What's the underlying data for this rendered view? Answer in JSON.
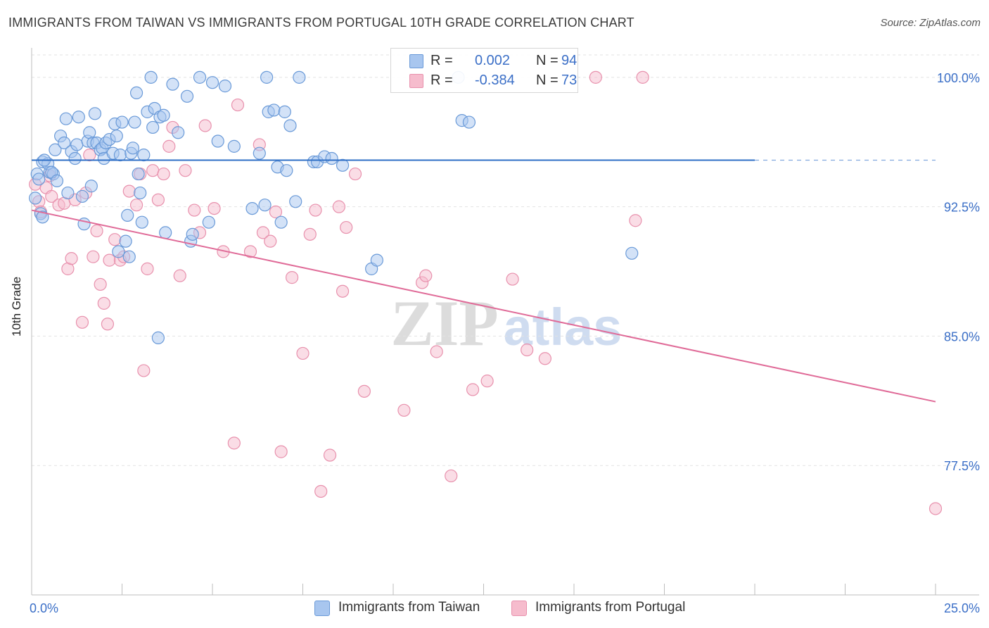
{
  "title": "IMMIGRANTS FROM TAIWAN VS IMMIGRANTS FROM PORTUGAL 10TH GRADE CORRELATION CHART",
  "source": "Source: ZipAtlas.com",
  "watermark": {
    "zip": "ZIP",
    "atlas": "atlas"
  },
  "legend": {
    "taiwan": {
      "r_label": "R =",
      "r_value": "0.002",
      "n_label": "N =",
      "n_value": "94"
    },
    "portugal": {
      "r_label": "R =",
      "r_value": "-0.384",
      "n_label": "N =",
      "n_value": "73"
    }
  },
  "bottom_legend": {
    "taiwan": "Immigrants from Taiwan",
    "portugal": "Immigrants from Portugal"
  },
  "colors": {
    "taiwan_fill": "#a8c6ef",
    "taiwan_stroke": "#6a9ad8",
    "taiwan_line": "#2f6fc6",
    "portugal_fill": "#f6bccd",
    "portugal_stroke": "#e891ad",
    "portugal_line": "#e06b98",
    "tick_label": "#3b6fc7",
    "grid": "#e2e2e2"
  },
  "chart_data": {
    "type": "scatter",
    "title": "IMMIGRANTS FROM TAIWAN VS IMMIGRANTS FROM PORTUGAL 10TH GRADE CORRELATION CHART",
    "xlabel": "",
    "ylabel": "10th Grade",
    "xlim": [
      0,
      25
    ],
    "ylim": [
      70.0,
      101.3
    ],
    "x_tick_labels": [
      {
        "value": 0,
        "label": "0.0%"
      },
      {
        "value": 25,
        "label": "25.0%"
      }
    ],
    "y_ticks": [
      {
        "value": 100.0,
        "label": "100.0%"
      },
      {
        "value": 92.5,
        "label": "92.5%"
      },
      {
        "value": 85.0,
        "label": "85.0%"
      },
      {
        "value": 77.5,
        "label": "77.5%"
      }
    ],
    "grid": "horizontal dashed",
    "legend_position": "top-center",
    "series": [
      {
        "name": "Immigrants from Taiwan",
        "R": 0.002,
        "N": 94,
        "trend": {
          "x": [
            0,
            20
          ],
          "y": [
            95.2,
            95.2
          ]
        },
        "trend_extension": {
          "x": [
            20,
            25
          ],
          "y": [
            95.2,
            95.2
          ]
        },
        "points": [
          [
            0.15,
            94.4
          ],
          [
            0.2,
            94.1
          ],
          [
            0.3,
            95.1
          ],
          [
            0.25,
            92.1
          ],
          [
            0.3,
            91.9
          ],
          [
            0.5,
            94.5
          ],
          [
            0.6,
            94.4
          ],
          [
            0.45,
            95.0
          ],
          [
            0.55,
            94.5
          ],
          [
            0.7,
            94.0
          ],
          [
            0.65,
            95.8
          ],
          [
            0.8,
            96.6
          ],
          [
            0.9,
            96.2
          ],
          [
            0.95,
            97.6
          ],
          [
            1.0,
            93.3
          ],
          [
            1.1,
            95.7
          ],
          [
            1.2,
            95.3
          ],
          [
            1.3,
            97.7
          ],
          [
            1.25,
            96.1
          ],
          [
            1.4,
            93.1
          ],
          [
            1.45,
            91.5
          ],
          [
            1.55,
            96.3
          ],
          [
            1.6,
            96.8
          ],
          [
            1.65,
            93.7
          ],
          [
            1.7,
            96.2
          ],
          [
            1.75,
            97.9
          ],
          [
            1.8,
            96.2
          ],
          [
            1.9,
            95.8
          ],
          [
            1.95,
            95.9
          ],
          [
            2.0,
            95.3
          ],
          [
            2.05,
            96.2
          ],
          [
            2.15,
            96.4
          ],
          [
            2.25,
            95.6
          ],
          [
            2.3,
            97.3
          ],
          [
            2.35,
            96.6
          ],
          [
            2.4,
            89.9
          ],
          [
            2.45,
            95.5
          ],
          [
            2.5,
            97.4
          ],
          [
            2.6,
            90.5
          ],
          [
            2.65,
            92.0
          ],
          [
            2.7,
            89.6
          ],
          [
            2.75,
            95.6
          ],
          [
            2.8,
            95.9
          ],
          [
            2.85,
            97.4
          ],
          [
            2.9,
            99.1
          ],
          [
            2.95,
            94.4
          ],
          [
            3.0,
            93.3
          ],
          [
            3.05,
            91.6
          ],
          [
            3.1,
            95.5
          ],
          [
            3.2,
            98.0
          ],
          [
            3.3,
            100.0
          ],
          [
            3.35,
            97.1
          ],
          [
            3.4,
            98.2
          ],
          [
            3.5,
            84.9
          ],
          [
            3.55,
            97.7
          ],
          [
            3.65,
            97.8
          ],
          [
            3.7,
            91.0
          ],
          [
            3.9,
            99.6
          ],
          [
            4.05,
            96.8
          ],
          [
            4.3,
            98.9
          ],
          [
            4.4,
            90.5
          ],
          [
            4.45,
            90.9
          ],
          [
            4.65,
            100.0
          ],
          [
            4.9,
            91.6
          ],
          [
            5.0,
            99.7
          ],
          [
            5.15,
            96.3
          ],
          [
            5.35,
            99.5
          ],
          [
            5.6,
            96.0
          ],
          [
            6.1,
            92.4
          ],
          [
            6.3,
            95.6
          ],
          [
            6.45,
            92.6
          ],
          [
            6.5,
            100.0
          ],
          [
            6.55,
            98.0
          ],
          [
            6.7,
            98.1
          ],
          [
            6.8,
            94.8
          ],
          [
            6.9,
            91.6
          ],
          [
            7.0,
            98.0
          ],
          [
            7.05,
            94.6
          ],
          [
            7.15,
            97.2
          ],
          [
            7.3,
            92.8
          ],
          [
            7.4,
            100.0
          ],
          [
            7.8,
            95.1
          ],
          [
            7.9,
            95.1
          ],
          [
            8.1,
            95.4
          ],
          [
            8.3,
            95.3
          ],
          [
            8.6,
            94.9
          ],
          [
            9.4,
            88.9
          ],
          [
            9.55,
            89.4
          ],
          [
            11.8,
            100.0
          ],
          [
            11.9,
            97.5
          ],
          [
            12.1,
            97.4
          ],
          [
            16.6,
            89.8
          ],
          [
            0.1,
            93.0
          ],
          [
            0.35,
            95.2
          ]
        ]
      },
      {
        "name": "Immigrants from Portugal",
        "R": -0.384,
        "N": 73,
        "trend": {
          "x": [
            0,
            25
          ],
          "y": [
            92.3,
            81.2
          ]
        },
        "points": [
          [
            0.1,
            93.8
          ],
          [
            0.2,
            92.8
          ],
          [
            0.25,
            92.2
          ],
          [
            0.4,
            93.6
          ],
          [
            0.5,
            94.3
          ],
          [
            0.55,
            93.1
          ],
          [
            0.75,
            92.6
          ],
          [
            0.9,
            92.7
          ],
          [
            1.0,
            88.9
          ],
          [
            1.1,
            89.5
          ],
          [
            1.2,
            92.9
          ],
          [
            1.4,
            85.8
          ],
          [
            1.5,
            93.3
          ],
          [
            1.6,
            95.5
          ],
          [
            1.7,
            89.6
          ],
          [
            1.8,
            91.1
          ],
          [
            1.9,
            88.0
          ],
          [
            2.0,
            86.9
          ],
          [
            2.1,
            85.7
          ],
          [
            2.15,
            89.4
          ],
          [
            2.3,
            90.6
          ],
          [
            2.45,
            89.4
          ],
          [
            2.55,
            89.6
          ],
          [
            2.7,
            93.4
          ],
          [
            2.9,
            92.6
          ],
          [
            3.0,
            94.4
          ],
          [
            3.1,
            83.0
          ],
          [
            3.2,
            88.9
          ],
          [
            3.35,
            94.6
          ],
          [
            3.5,
            92.9
          ],
          [
            3.65,
            94.4
          ],
          [
            3.8,
            96.0
          ],
          [
            3.9,
            97.1
          ],
          [
            4.1,
            88.5
          ],
          [
            4.25,
            94.6
          ],
          [
            4.5,
            92.3
          ],
          [
            4.65,
            91.0
          ],
          [
            4.8,
            97.2
          ],
          [
            5.05,
            92.4
          ],
          [
            5.3,
            89.9
          ],
          [
            5.6,
            78.8
          ],
          [
            5.7,
            98.4
          ],
          [
            6.05,
            89.9
          ],
          [
            6.3,
            96.1
          ],
          [
            6.4,
            91.0
          ],
          [
            6.6,
            90.5
          ],
          [
            6.75,
            92.2
          ],
          [
            6.9,
            78.3
          ],
          [
            7.2,
            88.4
          ],
          [
            7.5,
            84.0
          ],
          [
            7.7,
            90.9
          ],
          [
            7.85,
            92.3
          ],
          [
            8.0,
            76.0
          ],
          [
            8.25,
            78.1
          ],
          [
            8.5,
            92.5
          ],
          [
            8.6,
            87.6
          ],
          [
            8.7,
            91.3
          ],
          [
            8.95,
            94.4
          ],
          [
            9.2,
            81.8
          ],
          [
            10.3,
            80.7
          ],
          [
            10.8,
            88.1
          ],
          [
            10.9,
            88.5
          ],
          [
            11.2,
            84.1
          ],
          [
            11.6,
            76.9
          ],
          [
            12.2,
            81.9
          ],
          [
            12.6,
            82.4
          ],
          [
            13.3,
            88.3
          ],
          [
            13.7,
            84.2
          ],
          [
            14.2,
            83.7
          ],
          [
            15.6,
            100.0
          ],
          [
            16.9,
            100.0
          ],
          [
            16.7,
            91.7
          ],
          [
            25.0,
            75.0
          ]
        ]
      }
    ]
  }
}
